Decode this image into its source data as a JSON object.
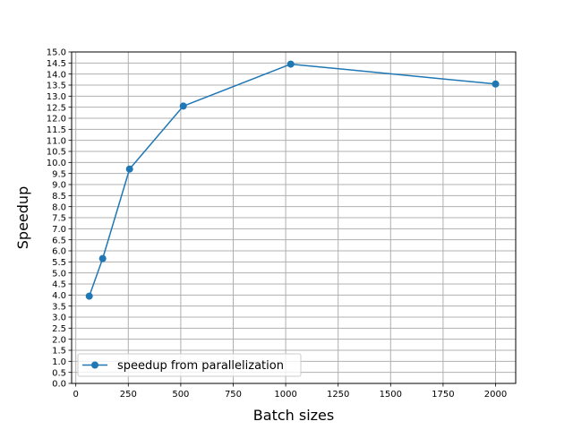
{
  "chart_data": {
    "type": "line",
    "xlabel": "Batch sizes",
    "ylabel": "Speedup",
    "xlim": [
      -20,
      2096
    ],
    "ylim": [
      0,
      15
    ],
    "x_ticks": [
      0,
      250,
      500,
      750,
      1000,
      1250,
      1500,
      1750,
      2000
    ],
    "y_ticks": [
      0.0,
      0.5,
      1.0,
      1.5,
      2.0,
      2.5,
      3.0,
      3.5,
      4.0,
      4.5,
      5.0,
      5.5,
      6.0,
      6.5,
      7.0,
      7.5,
      8.0,
      8.5,
      9.0,
      9.5,
      10.0,
      10.5,
      11.0,
      11.5,
      12.0,
      12.5,
      13.0,
      13.5,
      14.0,
      14.5,
      15.0
    ],
    "grid": true,
    "legend_position": "lower-left",
    "series": [
      {
        "name": "speedup from parallelization",
        "color": "#1f77b4",
        "marker": "circle",
        "x": [
          64,
          128,
          256,
          512,
          1024,
          2000
        ],
        "y": [
          3.95,
          5.65,
          9.7,
          12.55,
          14.45,
          13.55
        ]
      }
    ]
  }
}
